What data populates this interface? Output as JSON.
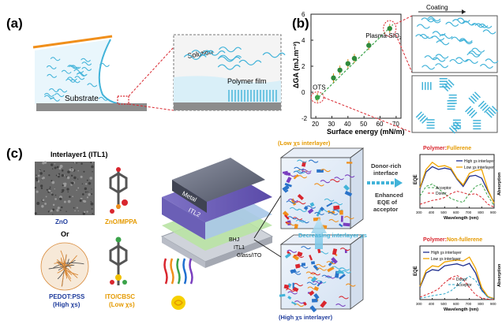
{
  "panel_labels": {
    "a": "(a)",
    "b": "(b)",
    "c": "(c)"
  },
  "panel_a": {
    "solution": "Solution",
    "polymer_film": "Polymer film",
    "substrate": "Substrate"
  },
  "panel_b": {
    "coating": "Coating",
    "y_label": "ΔGA (mJ.m⁻²)",
    "x_label": "Surface energy (mN/m)",
    "annotation_ots": "OTS",
    "annotation_plasma": "Plasma-SiO",
    "annotation_plasma_sub": "2",
    "x_ticks": [
      "20",
      "30",
      "40",
      "50",
      "60",
      "70"
    ],
    "y_ticks": [
      "-2",
      "0",
      "2",
      "4",
      "6"
    ]
  },
  "chart_data": [
    {
      "type": "scatter",
      "xlabel": "Surface energy (mN/m)",
      "ylabel": "ΔGA (mJ.m⁻²)",
      "xlim": [
        17,
        73
      ],
      "ylim": [
        -2,
        6
      ],
      "x": [
        21,
        31,
        35,
        40,
        44,
        53,
        66
      ],
      "y": [
        -0.4,
        1.1,
        1.7,
        2.2,
        2.6,
        3.6,
        4.9
      ],
      "colors": {
        "points": "#2f8a3b",
        "ots_point": "#3aa34a"
      }
    },
    {
      "type": "line",
      "title": "Polymer:Fullerene",
      "xlabel": "Wavelength (nm)",
      "ylabel": "EQE",
      "x_ticks": [
        "300",
        "400",
        "500",
        "600",
        "700",
        "800",
        "900"
      ],
      "xlim": [
        300,
        900
      ],
      "series": [
        {
          "name": "High χs interlayer",
          "color": "#1f2f8f",
          "x": [
            300,
            350,
            400,
            450,
            500,
            550,
            600,
            650,
            700,
            750,
            800,
            850,
            900
          ],
          "y": [
            0.4,
            0.75,
            0.86,
            0.8,
            0.83,
            0.8,
            0.6,
            0.45,
            0.66,
            0.68,
            0.62,
            0.35,
            0.12
          ]
        },
        {
          "name": "Low χs interlayer",
          "color": "#f0a500",
          "x": [
            300,
            350,
            400,
            450,
            500,
            550,
            600,
            650,
            700,
            750,
            800,
            850,
            900
          ],
          "y": [
            0.42,
            0.8,
            0.95,
            0.86,
            0.88,
            0.83,
            0.62,
            0.48,
            0.72,
            0.78,
            0.8,
            0.38,
            0.1
          ]
        },
        {
          "name": "Acceptor",
          "color": "#3aa34a",
          "x": [
            300,
            350,
            400,
            450,
            500,
            550,
            600,
            650,
            700,
            750,
            800,
            850,
            900
          ],
          "y": [
            0.25,
            0.45,
            0.5,
            0.4,
            0.3,
            0.2,
            0.15,
            0.12,
            0.3,
            0.45,
            0.5,
            0.25,
            0.05
          ]
        },
        {
          "name": "Donor",
          "color": "#d9262e",
          "x": [
            300,
            350,
            400,
            450,
            500,
            550,
            600,
            650,
            700,
            750,
            800,
            850,
            900
          ],
          "y": [
            0.08,
            0.12,
            0.16,
            0.18,
            0.22,
            0.3,
            0.35,
            0.32,
            0.28,
            0.3,
            0.22,
            0.08,
            0.02
          ]
        }
      ]
    },
    {
      "type": "line",
      "title": "Polymer:Non-fullerene",
      "xlabel": "Wavelength (nm)",
      "ylabel": "EQE",
      "x_ticks": [
        "300",
        "400",
        "500",
        "600",
        "700",
        "800",
        "900"
      ],
      "xlim": [
        300,
        900
      ],
      "series": [
        {
          "name": "High χs interlayer",
          "color": "#1f2f8f",
          "x": [
            300,
            350,
            400,
            450,
            500,
            550,
            600,
            650,
            700,
            750,
            800,
            850,
            900
          ],
          "y": [
            0.25,
            0.55,
            0.62,
            0.6,
            0.7,
            0.72,
            0.74,
            0.7,
            0.75,
            0.55,
            0.2,
            0.05,
            0.02
          ]
        },
        {
          "name": "Low χs interlayer",
          "color": "#f0a500",
          "x": [
            300,
            350,
            400,
            450,
            500,
            550,
            600,
            650,
            700,
            750,
            800,
            850,
            900
          ],
          "y": [
            0.27,
            0.6,
            0.7,
            0.68,
            0.78,
            0.8,
            0.82,
            0.8,
            0.88,
            0.65,
            0.25,
            0.06,
            0.02
          ]
        },
        {
          "name": "Donor",
          "color": "#d9262e",
          "x": [
            300,
            350,
            400,
            450,
            500,
            550,
            600,
            650,
            700,
            750,
            800,
            850,
            900
          ],
          "y": [
            0.05,
            0.1,
            0.15,
            0.22,
            0.35,
            0.45,
            0.5,
            0.42,
            0.25,
            0.1,
            0.03,
            0.01,
            0.0
          ]
        },
        {
          "name": "Acceptor",
          "color": "#2aa6c8",
          "x": [
            300,
            350,
            400,
            450,
            500,
            550,
            600,
            650,
            700,
            750,
            800,
            850,
            900
          ],
          "y": [
            0.03,
            0.05,
            0.08,
            0.1,
            0.12,
            0.18,
            0.28,
            0.4,
            0.48,
            0.4,
            0.18,
            0.05,
            0.01
          ]
        }
      ]
    }
  ],
  "panel_c": {
    "interlayer_title": "Interlayer1 (ITL1)",
    "zno": "ZnO",
    "zno_mppa": "ZnO/MPPA",
    "or": "Or",
    "pedot": "PEDOT:PSS",
    "pedot_sub_pre": "(High ",
    "pedot_sub_chi": "χs",
    "pedot_sub_post": ")",
    "ito_cbsc": "ITO/CBSC",
    "ito_sub_pre": "(Low ",
    "ito_sub_chi": "χs",
    "ito_sub_post": ")",
    "layers": {
      "metal": "Metal",
      "itl2": "ITL2",
      "bhj": "BHJ",
      "itl1": "ITL1",
      "glass": "Glass/ITO"
    },
    "low_interlayer": "(Low χs interlayer)",
    "high_interlayer": "(High χs interlayer)",
    "donor_rich_1": "Donor-rich",
    "donor_rich_2": "interface",
    "enhanced_1": "Enhanced",
    "enhanced_2": "EQE of",
    "enhanced_3": "acceptor",
    "decreasing": "Decreasing interlayer χs",
    "absorption": "Absorption",
    "wavelength": "Wavelength (nm)",
    "eqe": "EQE"
  },
  "colors": {
    "blue_label": "#1f3c9c",
    "orange_label": "#e59a00",
    "red_title": "#d9262e",
    "cyan": "#42b3d9"
  }
}
